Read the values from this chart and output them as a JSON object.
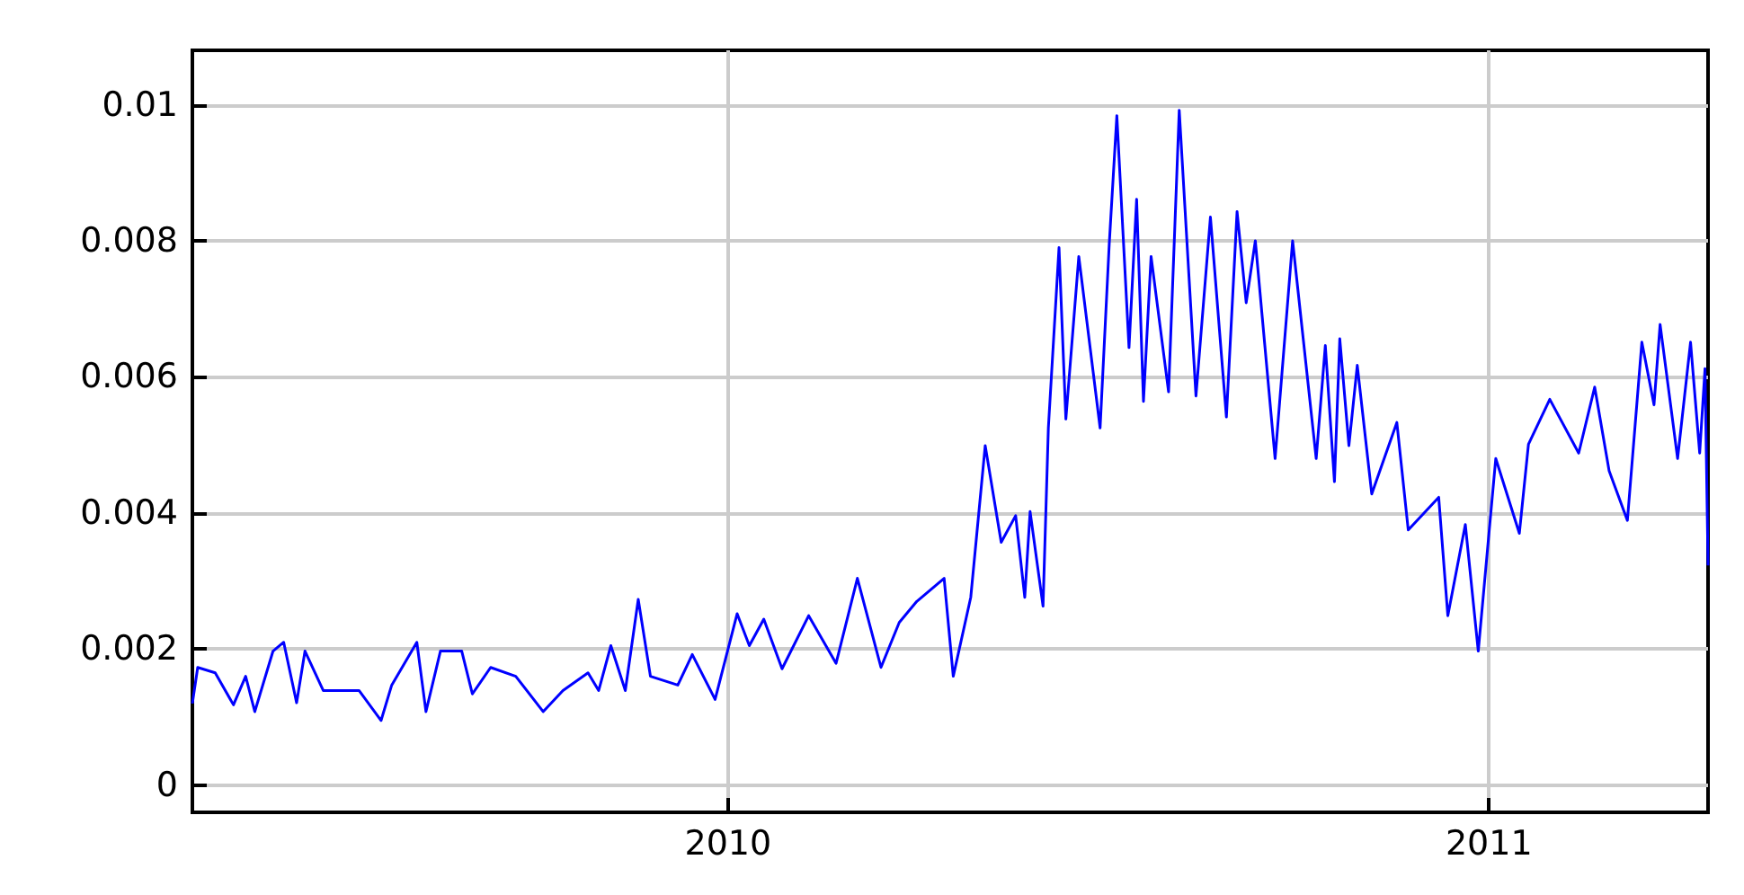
{
  "chart_data": {
    "type": "line",
    "x": [
      2009.296,
      2009.303,
      2009.326,
      2009.35,
      2009.366,
      2009.378,
      2009.402,
      2009.416,
      2009.433,
      2009.444,
      2009.468,
      2009.515,
      2009.544,
      2009.558,
      2009.591,
      2009.603,
      2009.622,
      2009.65,
      2009.664,
      2009.688,
      2009.721,
      2009.757,
      2009.783,
      2009.816,
      2009.83,
      2009.846,
      2009.865,
      2009.882,
      2009.898,
      2009.934,
      2009.953,
      2009.983,
      2010.012,
      2010.028,
      2010.047,
      2010.071,
      2010.106,
      2010.142,
      2010.17,
      2010.201,
      2010.225,
      2010.248,
      2010.284,
      2010.296,
      2010.319,
      2010.338,
      2010.359,
      2010.378,
      2010.39,
      2010.397,
      2010.414,
      2010.421,
      2010.435,
      2010.444,
      2010.461,
      2010.489,
      2010.501,
      2010.511,
      2010.527,
      2010.537,
      2010.546,
      2010.556,
      2010.579,
      2010.593,
      2010.615,
      2010.634,
      2010.655,
      2010.669,
      2010.681,
      2010.693,
      2010.719,
      2010.742,
      2010.773,
      2010.785,
      2010.797,
      2010.804,
      2010.816,
      2010.827,
      2010.846,
      2010.879,
      2010.894,
      2010.934,
      2010.946,
      2010.969,
      2010.986,
      2011.009,
      2011.04,
      2011.052,
      2011.08,
      2011.118,
      2011.139,
      2011.158,
      2011.182,
      2011.201,
      2011.217,
      2011.225,
      2011.248,
      2011.265,
      2011.277,
      2011.284,
      2011.288
    ],
    "series": [
      {
        "color": "#0000ff",
        "values": [
          0.0012,
          0.00173,
          0.00165,
          0.00118,
          0.0016,
          0.00108,
          0.00197,
          0.0021,
          0.00121,
          0.00197,
          0.00139,
          0.00139,
          0.00095,
          0.00147,
          0.0021,
          0.00108,
          0.00197,
          0.00197,
          0.00134,
          0.00173,
          0.0016,
          0.00108,
          0.00139,
          0.00165,
          0.00139,
          0.00205,
          0.00139,
          0.00273,
          0.0016,
          0.00147,
          0.00192,
          0.00126,
          0.00252,
          0.00205,
          0.00244,
          0.00171,
          0.00249,
          0.00179,
          0.00304,
          0.00173,
          0.00239,
          0.0027,
          0.00304,
          0.0016,
          0.00276,
          0.00499,
          0.00357,
          0.00396,
          0.00276,
          0.00402,
          0.00263,
          0.00525,
          0.0079,
          0.00538,
          0.00777,
          0.00525,
          0.00795,
          0.00984,
          0.00643,
          0.00861,
          0.00564,
          0.00777,
          0.00578,
          0.00992,
          0.00572,
          0.00835,
          0.00541,
          0.00843,
          0.00709,
          0.008,
          0.0048,
          0.008,
          0.0048,
          0.00646,
          0.00446,
          0.00656,
          0.00499,
          0.00617,
          0.00428,
          0.00533,
          0.00375,
          0.00423,
          0.00249,
          0.00383,
          0.00197,
          0.0048,
          0.0037,
          0.00501,
          0.00567,
          0.00488,
          0.00585,
          0.00462,
          0.00389,
          0.00651,
          0.00559,
          0.00677,
          0.0048,
          0.00651,
          0.00488,
          0.00612,
          0.00323
        ]
      }
    ],
    "xlim": [
      2009.296,
      2011.288
    ],
    "xticks": [
      2010,
      2011
    ],
    "ylim": [
      -0.0004,
      0.0108
    ],
    "yticks": [
      0,
      0.002,
      0.004,
      0.006,
      0.008,
      0.01
    ],
    "grid": true
  }
}
